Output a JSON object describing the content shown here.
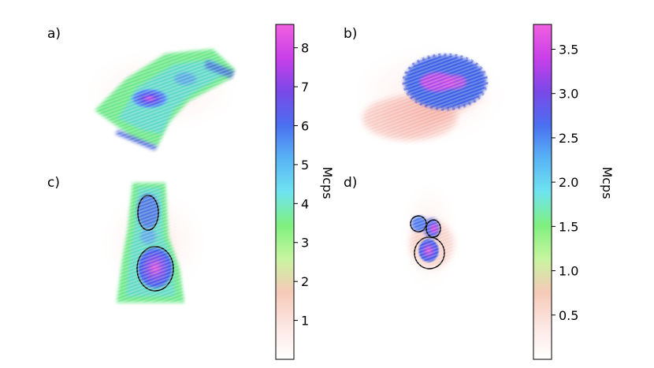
{
  "panels": [
    {
      "id": "a",
      "label": "a)"
    },
    {
      "id": "b",
      "label": "b)"
    },
    {
      "id": "c",
      "label": "c)"
    },
    {
      "id": "d",
      "label": "d)"
    }
  ],
  "colormap_stops": [
    "#ffffff",
    "#fde7e3",
    "#f6c9b8",
    "#c8f5a0",
    "#7ff07f",
    "#6fe3f0",
    "#59b3f5",
    "#4a6ff0",
    "#7b48e8",
    "#c840e8",
    "#f060e0"
  ],
  "chart_data": [
    {
      "type": "colorbar",
      "label": "Mcps",
      "applies_to": [
        "a",
        "c"
      ],
      "range": [
        0,
        8.6
      ],
      "ticks": [
        1,
        2,
        3,
        4,
        5,
        6,
        7,
        8
      ],
      "tick_labels": [
        "1",
        "2",
        "3",
        "4",
        "5",
        "6",
        "7",
        "8"
      ]
    },
    {
      "type": "colorbar",
      "label": "Mcps",
      "applies_to": [
        "b",
        "d"
      ],
      "range": [
        0,
        3.78
      ],
      "ticks": [
        0.5,
        1.0,
        1.5,
        2.0,
        2.5,
        3.0,
        3.5
      ],
      "tick_labels": [
        "0.5",
        "1.0",
        "1.5",
        "2.0",
        "2.5",
        "3.0",
        "3.5"
      ]
    }
  ]
}
